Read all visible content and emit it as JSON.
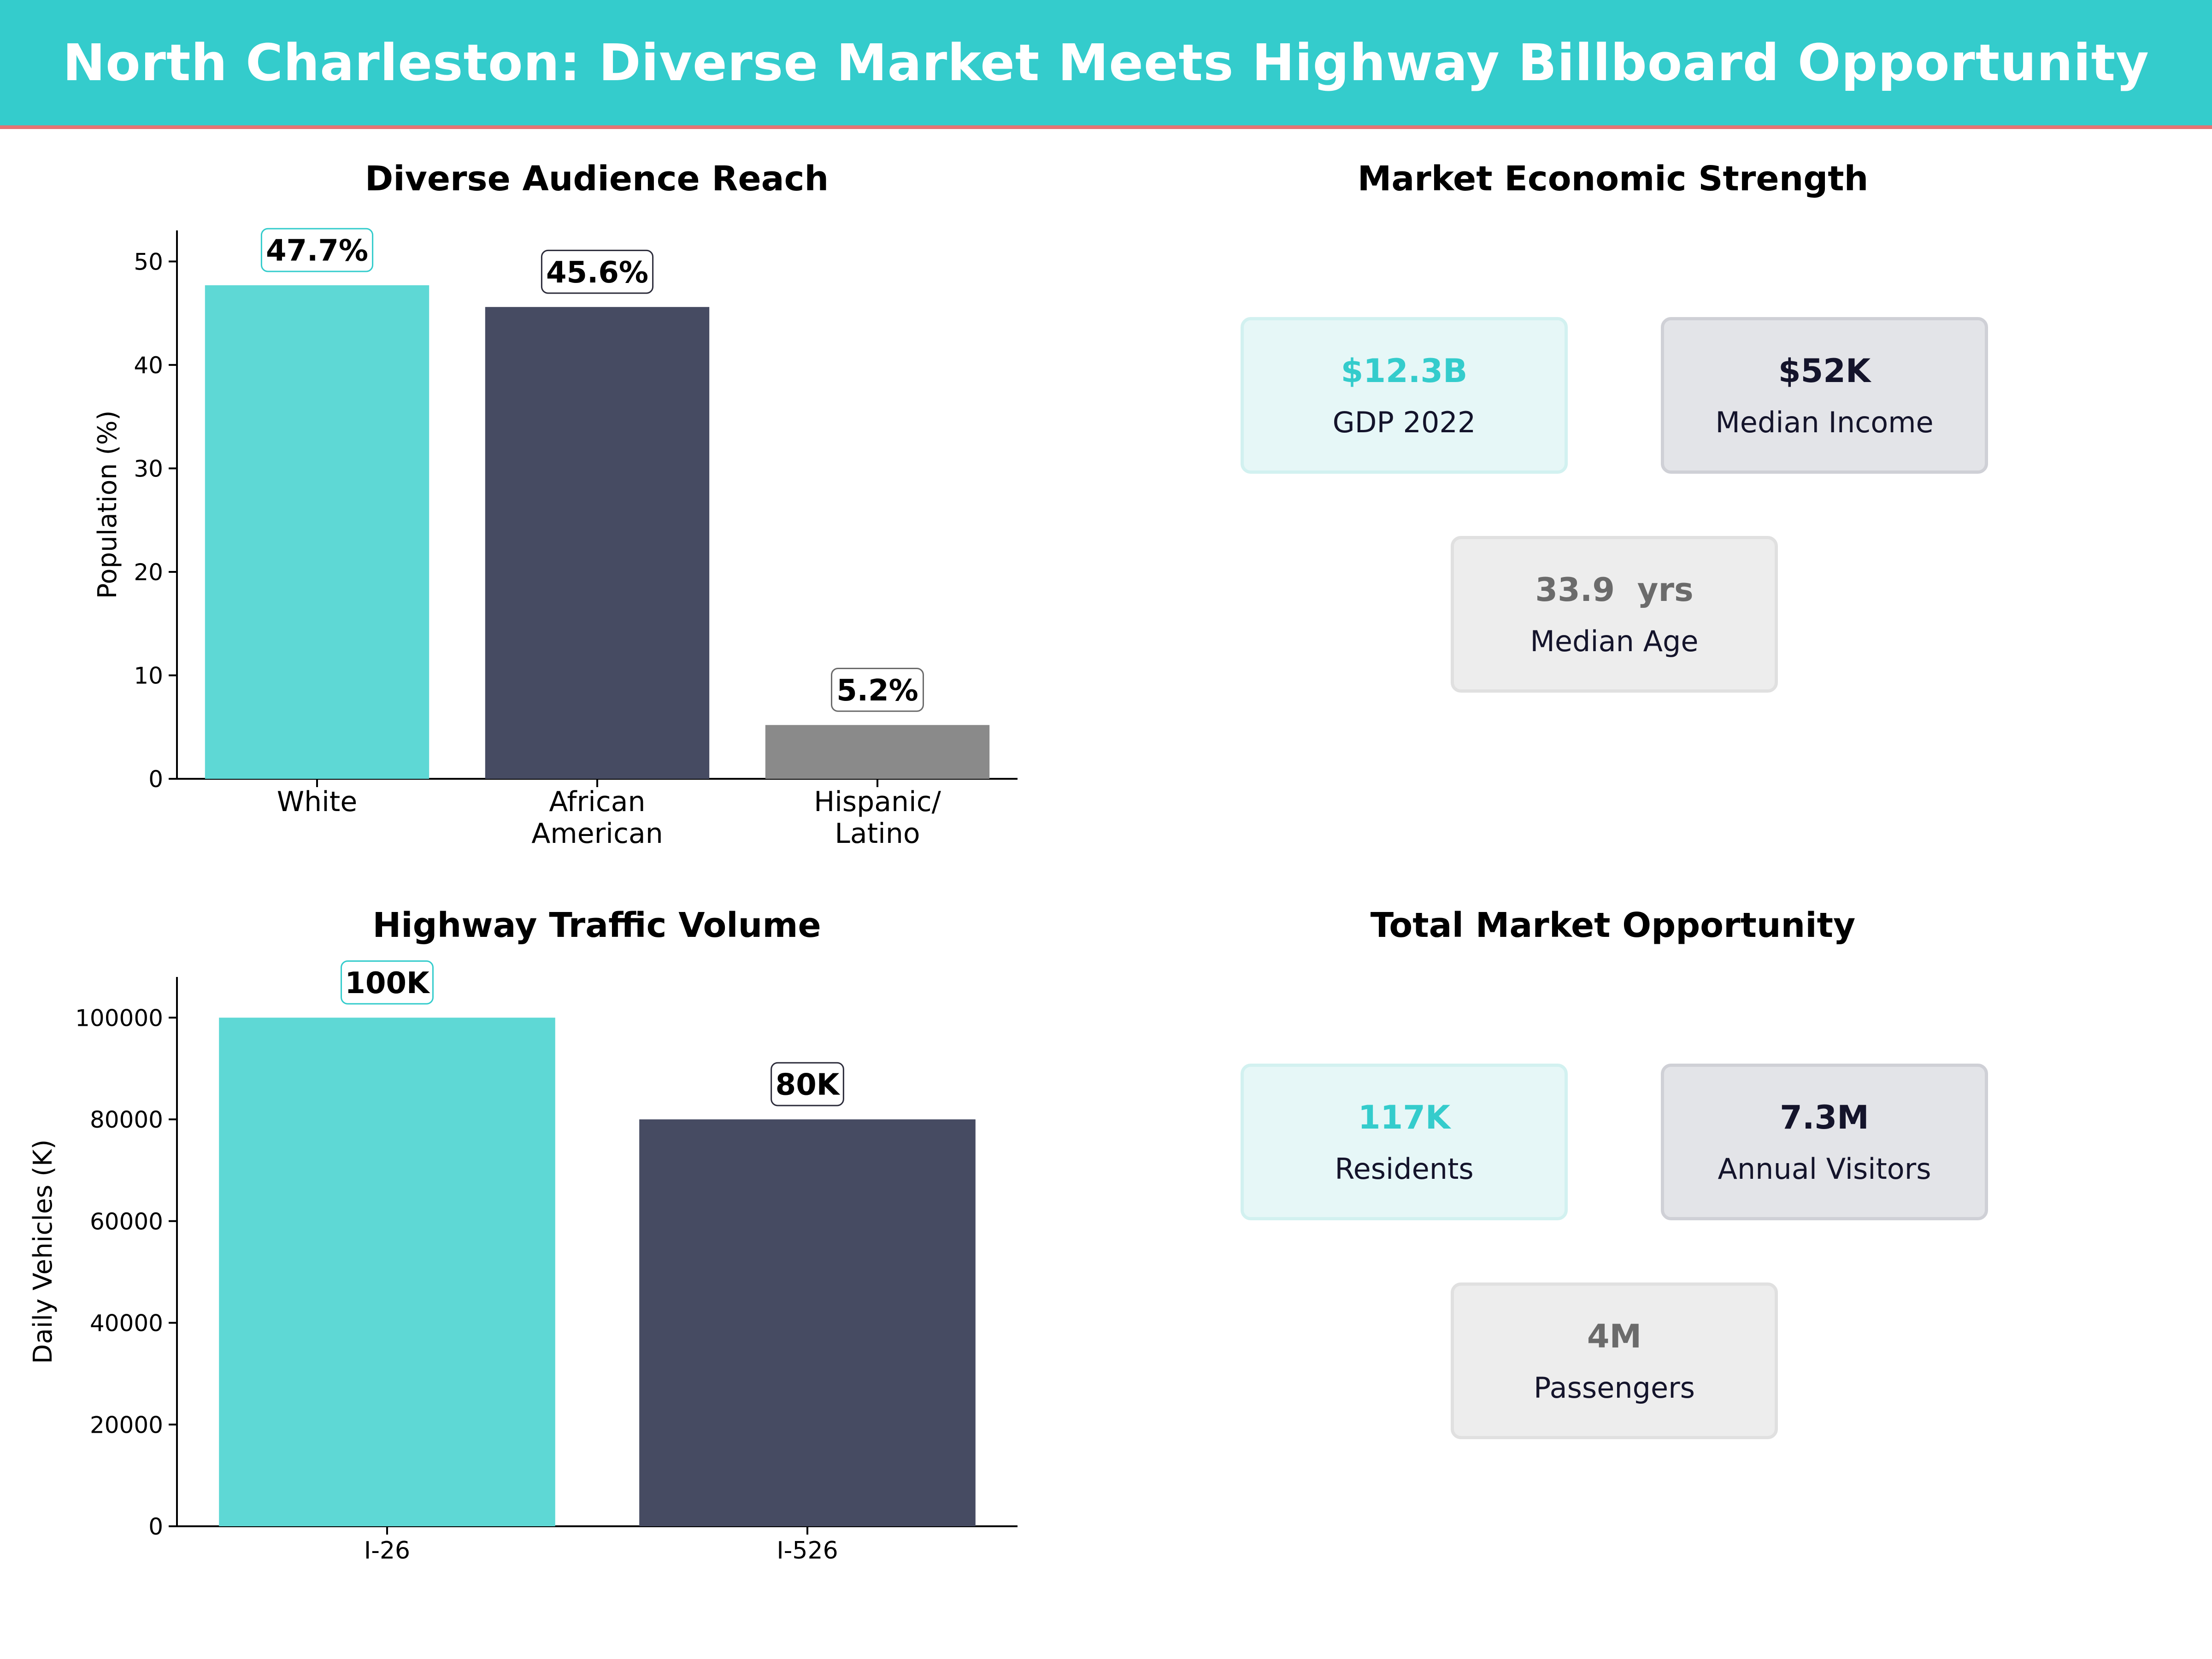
{
  "header": {
    "title": "North Charleston: Diverse Market Meets Highway Billboard Opportunity"
  },
  "colors": {
    "teal": "#5ED8D5",
    "navy": "#464B62",
    "gray": "#8A8A8A",
    "banner": "#34CCCC",
    "accent_line": "#E57373"
  },
  "chart_data": [
    {
      "type": "bar",
      "title": "Diverse Audience Reach",
      "categories": [
        "White",
        "African\nAmerican",
        "Hispanic/\nLatino"
      ],
      "values": [
        47.7,
        45.6,
        5.2
      ],
      "value_labels": [
        "47.7%",
        "45.6%",
        "5.2%"
      ],
      "xlabel": "",
      "ylabel": "Population (%)",
      "ylim": [
        0,
        53
      ],
      "yticks": [
        0,
        10,
        20,
        30,
        40,
        50
      ],
      "grid": false
    },
    {
      "type": "bar",
      "title": "Highway Traffic Volume",
      "categories": [
        "I-26",
        "I-526"
      ],
      "values": [
        100000,
        80000
      ],
      "value_labels": [
        "100K",
        "80K"
      ],
      "xlabel": "",
      "ylabel": "Daily Vehicles (K)",
      "ylim": [
        0,
        108000
      ],
      "yticks": [
        0,
        20000,
        40000,
        60000,
        80000,
        100000
      ],
      "grid": false
    }
  ],
  "economic": {
    "title": "Market Economic Strength",
    "cards": [
      {
        "value": "$12.3B",
        "label": "GDP 2022"
      },
      {
        "value": "$52K",
        "label": "Median Income"
      },
      {
        "value": "33.9  yrs",
        "label": "Median Age"
      }
    ]
  },
  "opportunity": {
    "title": "Total Market Opportunity",
    "cards": [
      {
        "value": "117K",
        "label": "Residents"
      },
      {
        "value": "7.3M",
        "label": "Annual Visitors"
      },
      {
        "value": "4M",
        "label": "Passengers"
      }
    ]
  }
}
